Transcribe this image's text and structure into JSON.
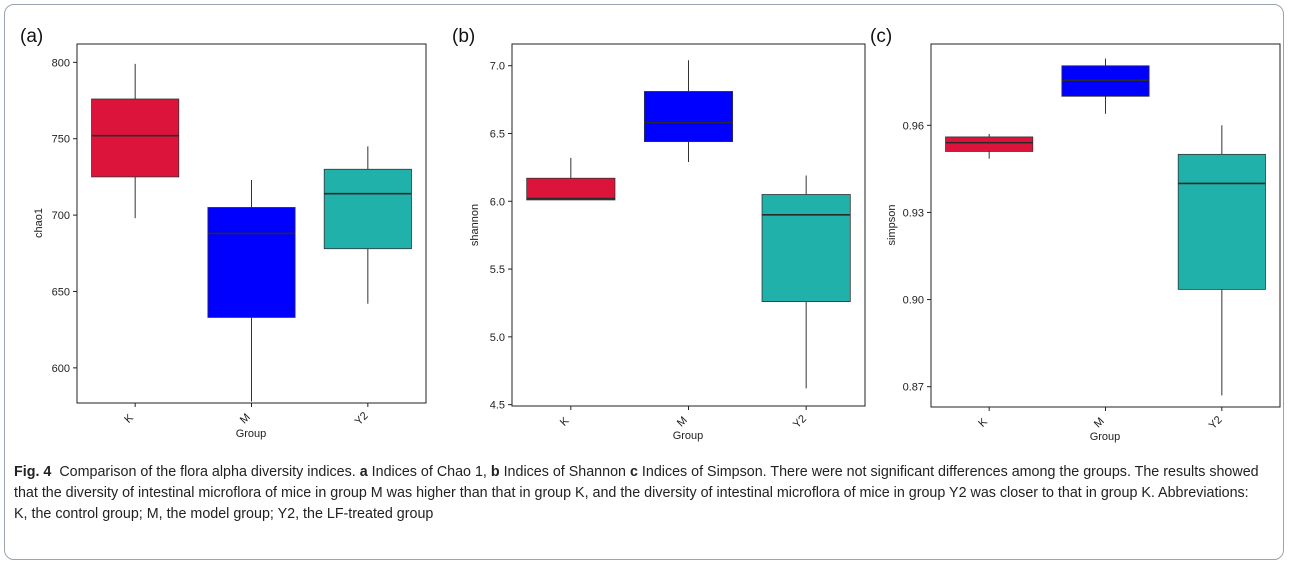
{
  "caption": {
    "fig_label": "Fig. 4",
    "parts": [
      {
        "bold": false,
        "text": "Comparison of the flora alpha diversity indices. "
      },
      {
        "bold": true,
        "text": "a"
      },
      {
        "bold": false,
        "text": " Indices of Chao 1, "
      },
      {
        "bold": true,
        "text": "b"
      },
      {
        "bold": false,
        "text": " Indices of Shannon "
      },
      {
        "bold": true,
        "text": "c"
      },
      {
        "bold": false,
        "text": " Indices of Simpson. There were not significant differences among the groups. The results showed that the diversity of intestinal microflora of mice in group M was higher than that in group K, and the diversity of intestinal microflora of mice in group Y2 was closer to that in group K. Abbreviations: K, the control group; M, the model group; Y2, the LF-treated group"
      }
    ]
  },
  "chart_data": [
    {
      "type": "box",
      "panel_label": "(a)",
      "xlabel": "Group",
      "ylabel": "chao1",
      "categories": [
        "K",
        "M",
        "Y2"
      ],
      "colors": [
        "#dc143c",
        "#0000ff",
        "#20b2aa"
      ],
      "yticks": [
        "600",
        "650",
        "700",
        "750",
        "800"
      ],
      "ylim": [
        577,
        812
      ],
      "boxes": [
        {
          "group": "K",
          "min": 698,
          "q1": 725,
          "median": 752,
          "q3": 776,
          "max": 799
        },
        {
          "group": "M",
          "min": 578,
          "q1": 633,
          "median": 688,
          "q3": 705,
          "max": 723
        },
        {
          "group": "Y2",
          "min": 642,
          "q1": 678,
          "median": 714,
          "q3": 730,
          "max": 745
        }
      ],
      "grid": false
    },
    {
      "type": "box",
      "panel_label": "(b)",
      "xlabel": "Group",
      "ylabel": "shannon",
      "categories": [
        "K",
        "M",
        "Y2"
      ],
      "colors": [
        "#dc143c",
        "#0000ff",
        "#20b2aa"
      ],
      "yticks": [
        "4.5",
        "5.0",
        "5.5",
        "6.0",
        "6.5",
        "7.0"
      ],
      "ylim": [
        4.49,
        7.16
      ],
      "boxes": [
        {
          "group": "K",
          "min": 6.01,
          "q1": 6.01,
          "median": 6.02,
          "q3": 6.17,
          "max": 6.32
        },
        {
          "group": "M",
          "min": 6.29,
          "q1": 6.44,
          "median": 6.58,
          "q3": 6.81,
          "max": 7.04
        },
        {
          "group": "Y2",
          "min": 4.62,
          "q1": 5.26,
          "median": 5.9,
          "q3": 6.05,
          "max": 6.19
        }
      ],
      "grid": false
    },
    {
      "type": "box",
      "panel_label": "(c)",
      "xlabel": "Group",
      "ylabel": "simpson",
      "categories": [
        "K",
        "M",
        "Y2"
      ],
      "colors": [
        "#dc143c",
        "#0000ff",
        "#20b2aa"
      ],
      "yticks": [
        "0.87",
        "0.90",
        "0.93",
        "0.96"
      ],
      "ylim": [
        0.863,
        0.988
      ],
      "boxes": [
        {
          "group": "K",
          "min": 0.9485,
          "q1": 0.951,
          "median": 0.954,
          "q3": 0.956,
          "max": 0.957
        },
        {
          "group": "M",
          "min": 0.964,
          "q1": 0.97,
          "median": 0.9755,
          "q3": 0.9805,
          "max": 0.983
        },
        {
          "group": "Y2",
          "min": 0.867,
          "q1": 0.9035,
          "median": 0.94,
          "q3": 0.95,
          "max": 0.96
        }
      ],
      "grid": false
    }
  ]
}
